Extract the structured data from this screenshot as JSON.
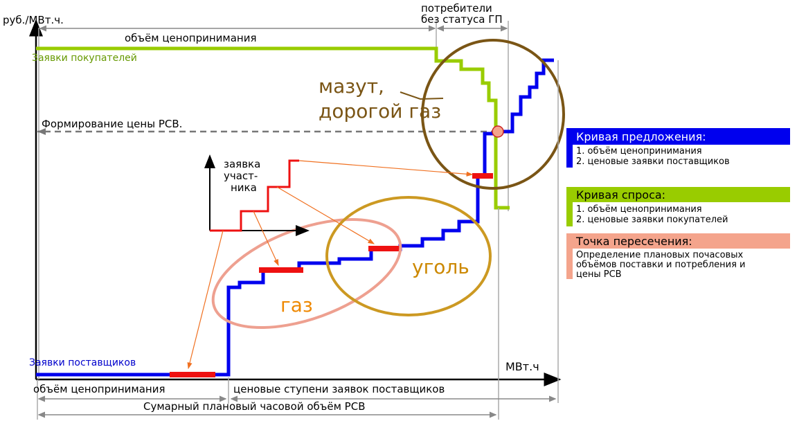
{
  "axes": {
    "y_label": "руб./МВт.ч.",
    "x_label": "МВт.ч"
  },
  "top": {
    "bracket_label": "объём ценопринимания",
    "consumers_line1": "потребители",
    "consumers_line2": "без статуса ГП"
  },
  "curves": {
    "buyers_label": "Заявки покупателей",
    "suppliers_label": "Заявки поставщиков",
    "price_formation_label": "Формирование цены РСВ."
  },
  "regions": {
    "fuel_oil_line1": "мазут,",
    "fuel_oil_line2": "дорогой газ",
    "gas": "газ",
    "coal": "уголь"
  },
  "bid": {
    "line1": "заявка",
    "line2": "участ-",
    "line3": "ника"
  },
  "bottom": {
    "price_taking_label": "объём ценопринимания",
    "price_steps_label": "ценовые ступени заявок поставщиков",
    "total_volume_label": "Сумарный плановый часовой объём РСВ"
  },
  "legend": {
    "supply": {
      "title": "Кривая предложения:",
      "items": [
        "1. объём ценопринимания",
        "2. ценовые заявки поставщиков"
      ],
      "color": "#0000ee"
    },
    "demand": {
      "title": "Кривая спроса:",
      "items": [
        "1. объём ценопринимания",
        "2. ценовые заявки покупателей"
      ],
      "color": "#99cc00"
    },
    "intersection": {
      "title": "Точка пересечения:",
      "items": [
        "Определение плановых почасовых",
        "объёмов поставки и потребления и",
        "цены РСВ"
      ],
      "color": "#f4a48c"
    }
  },
  "colors": {
    "supply": "#0000ee",
    "demand": "#99cc00",
    "bid": "#ee1111",
    "gas_ellipse": "#eea090",
    "coal_ellipse": "#cc9922",
    "oil_ellipse": "#7a5515",
    "region_text_gas": "#ee8800",
    "region_text_coal": "#cc8800",
    "region_text_oil": "#7a5515"
  }
}
